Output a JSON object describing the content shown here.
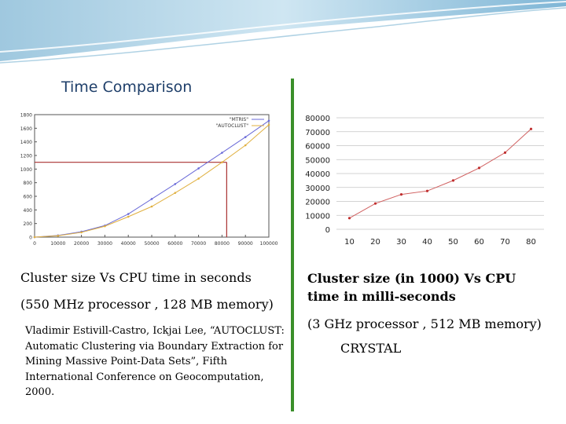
{
  "slide": {
    "title": "Time Comparison",
    "accent_color": "#3a8f2a",
    "title_color": "#1f3f6a"
  },
  "left": {
    "caption": "Cluster size Vs CPU time in seconds",
    "spec": "(550 MHz processor , 128 MB memory)",
    "citation": "Vladimir Estivill-Castro, Ickjai Lee, “AUTOCLUST: Automatic Clustering via Boundary Extraction for Mining Massive Point-Data Sets”, Fifth International Conference on Geocomputation, 2000."
  },
  "right": {
    "caption": "Cluster size (in 1000) Vs CPU time in milli-seconds",
    "spec": "(3 GHz processor , 512 MB memory)",
    "name": "CRYSTAL"
  },
  "chart_data": [
    {
      "type": "line",
      "title": "",
      "xlabel": "",
      "ylabel": "",
      "xlim": [
        0,
        100000
      ],
      "ylim": [
        0,
        1800
      ],
      "xticks": [
        "0",
        "10000",
        "20000",
        "30000",
        "40000",
        "50000",
        "60000",
        "70000",
        "80000",
        "90000",
        "100000"
      ],
      "yticks": [
        "0",
        "200",
        "400",
        "600",
        "800",
        "1000",
        "1200",
        "1400",
        "1600",
        "1800"
      ],
      "legend_position": "top-right",
      "grid": false,
      "series": [
        {
          "name": "\"MTRIS\"",
          "color": "#6a6ad8",
          "x": [
            0,
            10000,
            20000,
            30000,
            40000,
            50000,
            60000,
            70000,
            80000,
            90000,
            100000
          ],
          "y": [
            0,
            25,
            80,
            170,
            340,
            560,
            780,
            1010,
            1240,
            1470,
            1710
          ]
        },
        {
          "name": "\"AUTOCLUST\"",
          "color": "#e0b040",
          "x": [
            0,
            10000,
            20000,
            30000,
            40000,
            50000,
            60000,
            70000,
            80000,
            90000,
            100000
          ],
          "y": [
            0,
            20,
            70,
            160,
            300,
            450,
            650,
            860,
            1100,
            1350,
            1650
          ]
        }
      ],
      "reference_lines": {
        "color": "#a83030",
        "x": 82000,
        "y": 1100
      }
    },
    {
      "type": "line",
      "title": "",
      "xlabel": "",
      "ylabel": "",
      "categories": [
        "10",
        "20",
        "30",
        "40",
        "50",
        "60",
        "70",
        "80"
      ],
      "ylim": [
        0,
        80000
      ],
      "yticks": [
        "0",
        "10000",
        "20000",
        "30000",
        "40000",
        "50000",
        "60000",
        "70000",
        "80000"
      ],
      "grid": true,
      "series": [
        {
          "color": "#d06060",
          "values": [
            8000,
            18500,
            25000,
            27500,
            35000,
            44000,
            55000,
            72000
          ]
        }
      ]
    }
  ]
}
